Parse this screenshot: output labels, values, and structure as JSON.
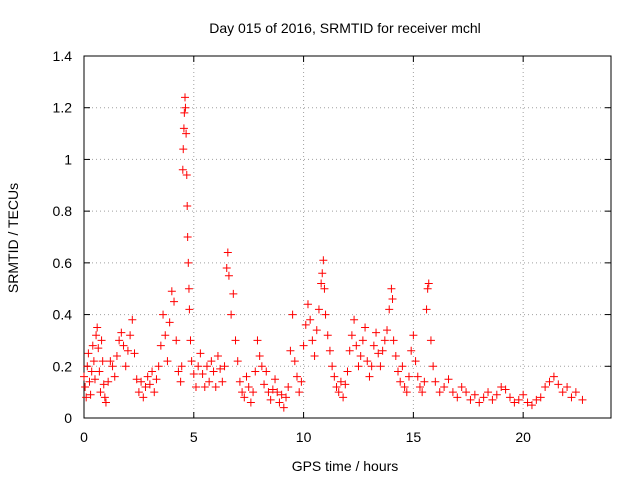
{
  "chart_data": {
    "type": "scatter",
    "title": "Day 015 of 2016, SRMTID for receiver mchl",
    "xlabel": "GPS time / hours",
    "ylabel": "SRMTID / TECUs",
    "xlim": [
      0,
      24
    ],
    "ylim": [
      0,
      1.4
    ],
    "xticks": [
      0,
      5,
      10,
      15,
      20
    ],
    "xtick_labels": [
      "0",
      "5",
      "10",
      "15",
      "20"
    ],
    "yticks": [
      0,
      0.2,
      0.4,
      0.6,
      0.8,
      1.0,
      1.2,
      1.4
    ],
    "ytick_labels": [
      "0",
      "0.2",
      "0.4",
      "0.6",
      "0.8",
      "1",
      "1.2",
      "1.4"
    ],
    "grid": true,
    "marker": "+",
    "color": "#ff0000",
    "series": [
      {
        "name": "SRMTID",
        "points": [
          [
            0.0,
            0.16
          ],
          [
            0.05,
            0.12
          ],
          [
            0.1,
            0.08
          ],
          [
            0.15,
            0.2
          ],
          [
            0.2,
            0.25
          ],
          [
            0.25,
            0.14
          ],
          [
            0.3,
            0.09
          ],
          [
            0.35,
            0.18
          ],
          [
            0.4,
            0.28
          ],
          [
            0.45,
            0.22
          ],
          [
            0.5,
            0.15
          ],
          [
            0.55,
            0.32
          ],
          [
            0.6,
            0.35
          ],
          [
            0.65,
            0.27
          ],
          [
            0.7,
            0.18
          ],
          [
            0.75,
            0.1
          ],
          [
            0.8,
            0.3
          ],
          [
            0.85,
            0.22
          ],
          [
            0.9,
            0.13
          ],
          [
            0.95,
            0.08
          ],
          [
            1.0,
            0.06
          ],
          [
            1.1,
            0.14
          ],
          [
            1.2,
            0.22
          ],
          [
            1.3,
            0.2
          ],
          [
            1.4,
            0.16
          ],
          [
            1.5,
            0.24
          ],
          [
            1.6,
            0.3
          ],
          [
            1.7,
            0.33
          ],
          [
            1.8,
            0.28
          ],
          [
            1.9,
            0.2
          ],
          [
            2.0,
            0.26
          ],
          [
            2.1,
            0.32
          ],
          [
            2.2,
            0.38
          ],
          [
            2.3,
            0.25
          ],
          [
            2.4,
            0.15
          ],
          [
            2.5,
            0.1
          ],
          [
            2.6,
            0.14
          ],
          [
            2.7,
            0.08
          ],
          [
            2.8,
            0.12
          ],
          [
            2.9,
            0.16
          ],
          [
            3.0,
            0.13
          ],
          [
            3.1,
            0.18
          ],
          [
            3.2,
            0.1
          ],
          [
            3.3,
            0.15
          ],
          [
            3.4,
            0.2
          ],
          [
            3.5,
            0.28
          ],
          [
            3.6,
            0.4
          ],
          [
            3.7,
            0.32
          ],
          [
            3.8,
            0.22
          ],
          [
            3.9,
            0.37
          ],
          [
            4.0,
            0.49
          ],
          [
            4.1,
            0.45
          ],
          [
            4.2,
            0.3
          ],
          [
            4.3,
            0.18
          ],
          [
            4.4,
            0.14
          ],
          [
            4.45,
            0.2
          ],
          [
            4.5,
            0.96
          ],
          [
            4.52,
            1.04
          ],
          [
            4.55,
            1.12
          ],
          [
            4.57,
            1.18
          ],
          [
            4.6,
            1.24
          ],
          [
            4.62,
            1.2
          ],
          [
            4.65,
            1.1
          ],
          [
            4.68,
            0.94
          ],
          [
            4.7,
            0.82
          ],
          [
            4.72,
            0.7
          ],
          [
            4.75,
            0.6
          ],
          [
            4.78,
            0.5
          ],
          [
            4.8,
            0.42
          ],
          [
            4.85,
            0.3
          ],
          [
            4.9,
            0.22
          ],
          [
            5.0,
            0.17
          ],
          [
            5.1,
            0.12
          ],
          [
            5.2,
            0.2
          ],
          [
            5.3,
            0.25
          ],
          [
            5.4,
            0.17
          ],
          [
            5.5,
            0.12
          ],
          [
            5.6,
            0.2
          ],
          [
            5.7,
            0.14
          ],
          [
            5.8,
            0.22
          ],
          [
            5.9,
            0.18
          ],
          [
            6.0,
            0.12
          ],
          [
            6.1,
            0.24
          ],
          [
            6.2,
            0.19
          ],
          [
            6.3,
            0.14
          ],
          [
            6.4,
            0.2
          ],
          [
            6.5,
            0.58
          ],
          [
            6.55,
            0.64
          ],
          [
            6.6,
            0.55
          ],
          [
            6.7,
            0.4
          ],
          [
            6.8,
            0.48
          ],
          [
            6.9,
            0.3
          ],
          [
            7.0,
            0.22
          ],
          [
            7.1,
            0.14
          ],
          [
            7.2,
            0.1
          ],
          [
            7.3,
            0.08
          ],
          [
            7.4,
            0.16
          ],
          [
            7.5,
            0.12
          ],
          [
            7.6,
            0.06
          ],
          [
            7.7,
            0.1
          ],
          [
            7.8,
            0.18
          ],
          [
            7.9,
            0.3
          ],
          [
            8.0,
            0.24
          ],
          [
            8.1,
            0.2
          ],
          [
            8.2,
            0.13
          ],
          [
            8.3,
            0.18
          ],
          [
            8.4,
            0.1
          ],
          [
            8.5,
            0.07
          ],
          [
            8.6,
            0.11
          ],
          [
            8.7,
            0.15
          ],
          [
            8.8,
            0.1
          ],
          [
            8.9,
            0.06
          ],
          [
            9.0,
            0.09
          ],
          [
            9.1,
            0.04
          ],
          [
            9.2,
            0.08
          ],
          [
            9.3,
            0.12
          ],
          [
            9.4,
            0.26
          ],
          [
            9.5,
            0.4
          ],
          [
            9.6,
            0.22
          ],
          [
            9.7,
            0.16
          ],
          [
            9.8,
            0.1
          ],
          [
            9.9,
            0.14
          ],
          [
            10.0,
            0.28
          ],
          [
            10.1,
            0.36
          ],
          [
            10.2,
            0.44
          ],
          [
            10.3,
            0.38
          ],
          [
            10.4,
            0.3
          ],
          [
            10.5,
            0.24
          ],
          [
            10.6,
            0.34
          ],
          [
            10.7,
            0.42
          ],
          [
            10.8,
            0.52
          ],
          [
            10.85,
            0.56
          ],
          [
            10.9,
            0.61
          ],
          [
            10.95,
            0.5
          ],
          [
            11.0,
            0.4
          ],
          [
            11.1,
            0.32
          ],
          [
            11.2,
            0.26
          ],
          [
            11.3,
            0.2
          ],
          [
            11.4,
            0.16
          ],
          [
            11.5,
            0.12
          ],
          [
            11.6,
            0.1
          ],
          [
            11.7,
            0.14
          ],
          [
            11.8,
            0.08
          ],
          [
            11.9,
            0.13
          ],
          [
            12.0,
            0.18
          ],
          [
            12.1,
            0.26
          ],
          [
            12.2,
            0.32
          ],
          [
            12.3,
            0.38
          ],
          [
            12.4,
            0.28
          ],
          [
            12.5,
            0.2
          ],
          [
            12.6,
            0.24
          ],
          [
            12.7,
            0.3
          ],
          [
            12.8,
            0.35
          ],
          [
            12.9,
            0.22
          ],
          [
            13.0,
            0.16
          ],
          [
            13.1,
            0.2
          ],
          [
            13.2,
            0.28
          ],
          [
            13.3,
            0.33
          ],
          [
            13.4,
            0.25
          ],
          [
            13.5,
            0.2
          ],
          [
            13.6,
            0.26
          ],
          [
            13.7,
            0.3
          ],
          [
            13.8,
            0.34
          ],
          [
            13.9,
            0.42
          ],
          [
            14.0,
            0.5
          ],
          [
            14.05,
            0.46
          ],
          [
            14.1,
            0.3
          ],
          [
            14.2,
            0.24
          ],
          [
            14.3,
            0.18
          ],
          [
            14.4,
            0.14
          ],
          [
            14.5,
            0.2
          ],
          [
            14.6,
            0.12
          ],
          [
            14.7,
            0.1
          ],
          [
            14.8,
            0.16
          ],
          [
            14.9,
            0.26
          ],
          [
            15.0,
            0.32
          ],
          [
            15.1,
            0.22
          ],
          [
            15.2,
            0.16
          ],
          [
            15.3,
            0.12
          ],
          [
            15.4,
            0.1
          ],
          [
            15.5,
            0.14
          ],
          [
            15.6,
            0.42
          ],
          [
            15.65,
            0.5
          ],
          [
            15.7,
            0.52
          ],
          [
            15.8,
            0.3
          ],
          [
            15.9,
            0.2
          ],
          [
            16.0,
            0.14
          ],
          [
            16.2,
            0.1
          ],
          [
            16.4,
            0.12
          ],
          [
            16.6,
            0.15
          ],
          [
            16.8,
            0.1
          ],
          [
            17.0,
            0.08
          ],
          [
            17.2,
            0.12
          ],
          [
            17.4,
            0.1
          ],
          [
            17.6,
            0.07
          ],
          [
            17.8,
            0.09
          ],
          [
            18.0,
            0.06
          ],
          [
            18.2,
            0.08
          ],
          [
            18.4,
            0.1
          ],
          [
            18.6,
            0.07
          ],
          [
            18.8,
            0.09
          ],
          [
            19.0,
            0.12
          ],
          [
            19.2,
            0.11
          ],
          [
            19.4,
            0.08
          ],
          [
            19.6,
            0.06
          ],
          [
            19.8,
            0.07
          ],
          [
            20.0,
            0.09
          ],
          [
            20.2,
            0.06
          ],
          [
            20.4,
            0.05
          ],
          [
            20.6,
            0.07
          ],
          [
            20.8,
            0.08
          ],
          [
            21.0,
            0.12
          ],
          [
            21.2,
            0.14
          ],
          [
            21.4,
            0.16
          ],
          [
            21.6,
            0.13
          ],
          [
            21.8,
            0.1
          ],
          [
            22.0,
            0.12
          ],
          [
            22.2,
            0.08
          ],
          [
            22.4,
            0.1
          ],
          [
            22.7,
            0.07
          ]
        ]
      }
    ]
  }
}
